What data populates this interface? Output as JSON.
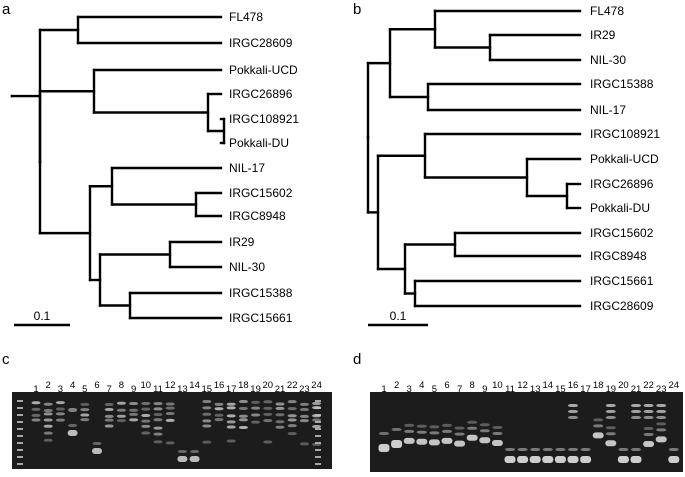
{
  "panels": {
    "a": {
      "letter": "a",
      "leaves": [
        "FL478",
        "IRGC28609",
        "Pokkali-UCD",
        "IRGC26896",
        "IRGC108921",
        "Pokkali-DU",
        "NIL-17",
        "IRGC15602",
        "IRGC8948",
        "IR29",
        "NIL-30",
        "IRGC15388",
        "IRGC15661"
      ],
      "scale_label": "0.1"
    },
    "b": {
      "letter": "b",
      "leaves": [
        "FL478",
        "IR29",
        "NIL-30",
        "IRGC15388",
        "NIL-17",
        "IRGC108921",
        "Pokkali-UCD",
        "IRGC26896",
        "Pokkali-DU",
        "IRGC15602",
        "IRGC8948",
        "IRGC15661",
        "IRGC28609"
      ],
      "scale_label": "0.1"
    },
    "c": {
      "letter": "c",
      "lanes": [
        "1",
        "2",
        "3",
        "4",
        "5",
        "6",
        "7",
        "8",
        "9",
        "10",
        "11",
        "12",
        "13",
        "14",
        "15",
        "16",
        "17",
        "18",
        "19",
        "20",
        "21",
        "22",
        "23",
        "24"
      ]
    },
    "d": {
      "letter": "d",
      "lanes": [
        "1",
        "2",
        "3",
        "4",
        "5",
        "6",
        "7",
        "8",
        "9",
        "10",
        "11",
        "12",
        "13",
        "14",
        "15",
        "16",
        "17",
        "18",
        "19",
        "20",
        "21",
        "22",
        "23",
        "24"
      ]
    }
  },
  "colors": {
    "tree_line": "#000000",
    "gel_bg": "#1c1c1c",
    "band": "#d8d8d8"
  }
}
